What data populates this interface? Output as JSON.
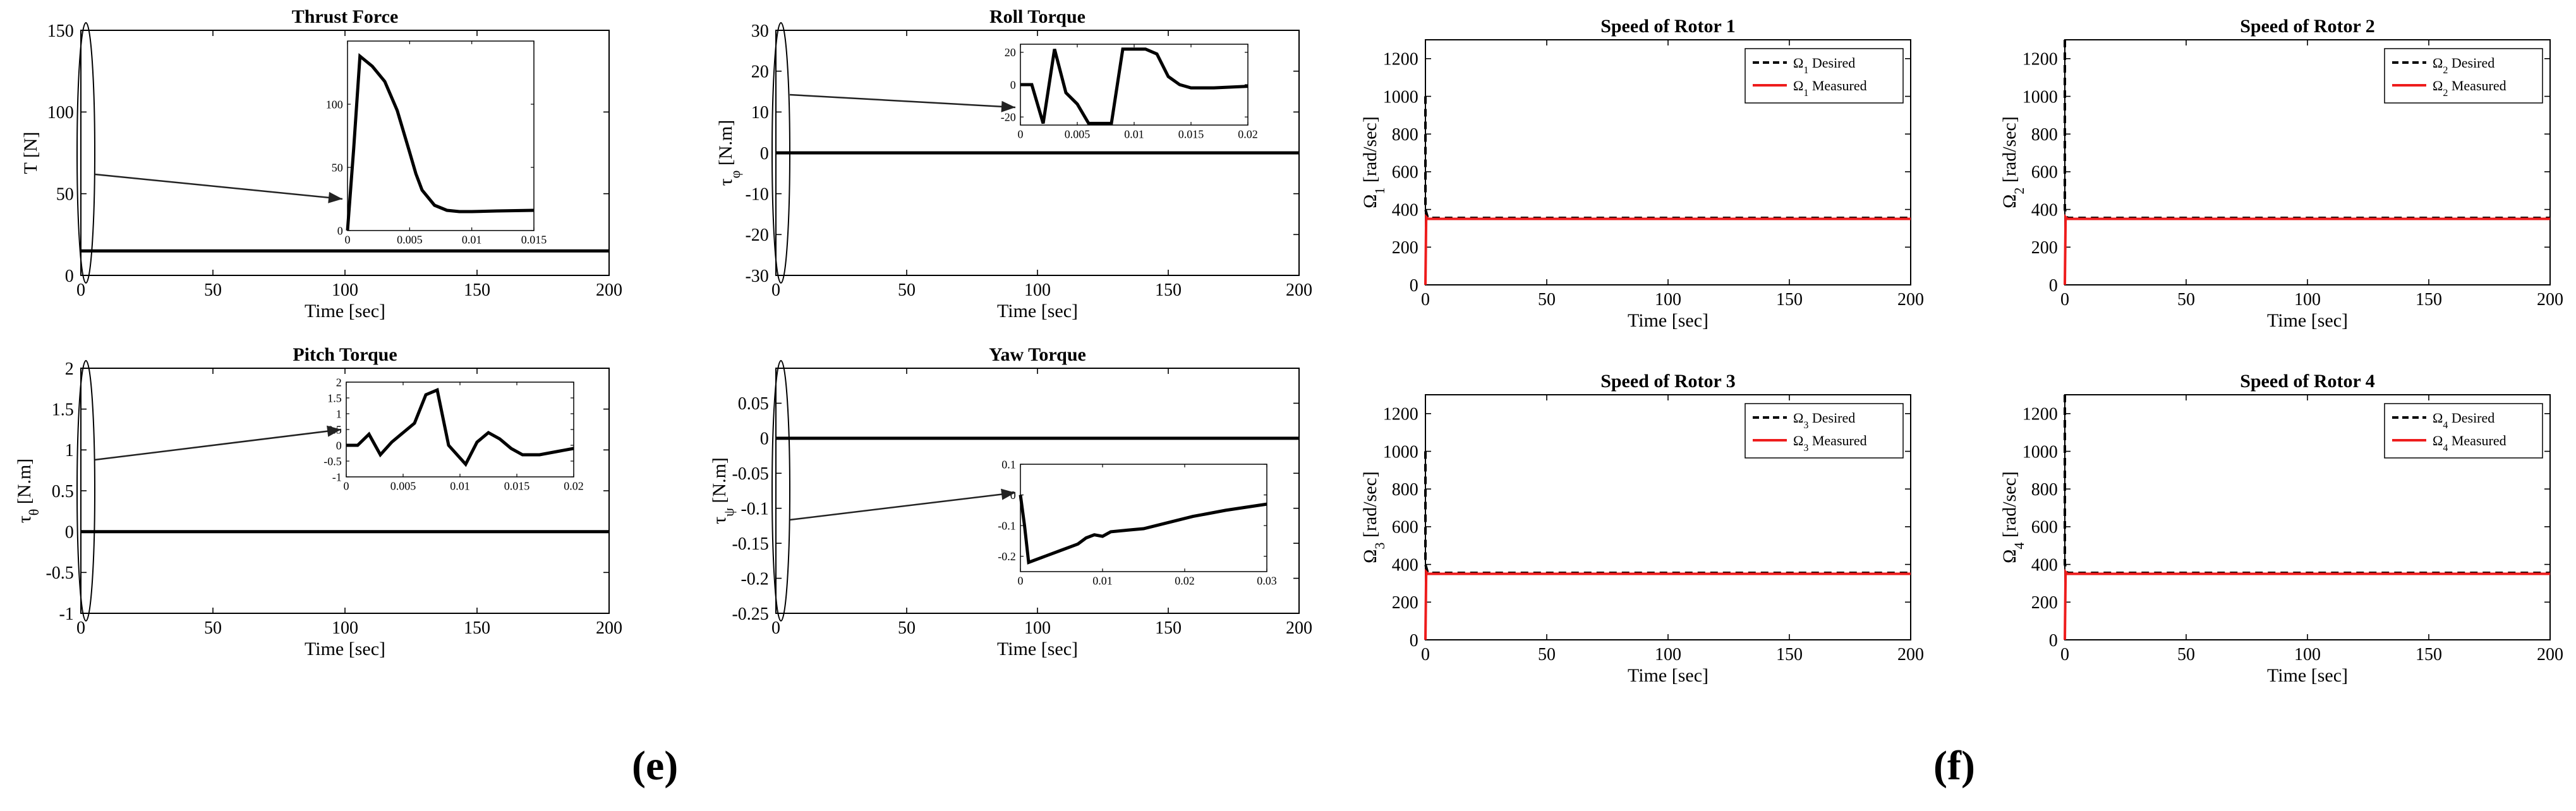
{
  "labels": {
    "left_group": "(e)",
    "right_group": "(f)"
  },
  "colors": {
    "axis": "#000000",
    "measured": "#ee1c1c",
    "desired": "#000000"
  },
  "chart_data": [
    {
      "id": "thrust",
      "type": "line",
      "title": "Thrust Force",
      "xlabel": "Time [sec]",
      "ylabel": "T [N]",
      "xlim": [
        0,
        200
      ],
      "ylim": [
        0,
        150
      ],
      "xticks": [
        0,
        50,
        100,
        150,
        200
      ],
      "yticks": [
        0,
        50,
        100,
        150
      ],
      "series": [
        {
          "name": "T",
          "x": [
            0,
            200
          ],
          "y": [
            15,
            15
          ]
        }
      ],
      "inset": {
        "xlim": [
          0,
          0.015
        ],
        "ylim": [
          0,
          150
        ],
        "xticks": [
          0,
          0.005,
          0.01,
          0.015
        ],
        "yticks": [
          0,
          50,
          100
        ],
        "xtick_labels": [
          "0",
          "0.005",
          "0.01",
          "0.015"
        ],
        "ytick_labels": [
          "0",
          "50",
          "100"
        ],
        "x": [
          0,
          0.0005,
          0.001,
          0.002,
          0.003,
          0.004,
          0.005,
          0.0055,
          0.006,
          0.007,
          0.008,
          0.009,
          0.01,
          0.012,
          0.015
        ],
        "y": [
          0,
          65,
          138,
          130,
          118,
          95,
          62,
          45,
          32,
          20,
          16,
          15,
          15,
          15.5,
          16
        ]
      }
    },
    {
      "id": "roll",
      "type": "line",
      "title": "Roll Torque",
      "xlabel": "Time [sec]",
      "ylabel": "τφ [N.m]",
      "xlim": [
        0,
        200
      ],
      "ylim": [
        -30,
        30
      ],
      "xticks": [
        0,
        50,
        100,
        150,
        200
      ],
      "yticks": [
        -30,
        -20,
        -10,
        0,
        10,
        20,
        30
      ],
      "series": [
        {
          "name": "τφ",
          "x": [
            0,
            200
          ],
          "y": [
            0,
            0
          ]
        }
      ],
      "inset": {
        "xlim": [
          0,
          0.02
        ],
        "ylim": [
          -25,
          25
        ],
        "xticks": [
          0,
          0.005,
          0.01,
          0.015,
          0.02
        ],
        "yticks": [
          -20,
          0,
          20
        ],
        "xtick_labels": [
          "0",
          "0.005",
          "0.01",
          "0.015",
          "0.02"
        ],
        "ytick_labels": [
          "-20",
          "0",
          "20"
        ],
        "x": [
          0,
          0.001,
          0.002,
          0.003,
          0.004,
          0.005,
          0.006,
          0.008,
          0.009,
          0.011,
          0.012,
          0.013,
          0.014,
          0.015,
          0.017,
          0.02
        ],
        "y": [
          0,
          0,
          -24,
          22,
          -5,
          -12,
          -24,
          -24,
          22,
          22,
          19,
          5,
          0,
          -2,
          -2,
          -1
        ]
      }
    },
    {
      "id": "pitch",
      "type": "line",
      "title": "Pitch Torque",
      "xlabel": "Time [sec]",
      "ylabel": "τθ [N.m]",
      "xlim": [
        0,
        200
      ],
      "ylim": [
        -1,
        2
      ],
      "xticks": [
        0,
        50,
        100,
        150,
        200
      ],
      "yticks": [
        -1,
        -0.5,
        0,
        0.5,
        1,
        1.5,
        2
      ],
      "series": [
        {
          "name": "τθ",
          "x": [
            0,
            200
          ],
          "y": [
            0,
            0
          ]
        }
      ],
      "inset": {
        "xlim": [
          0,
          0.02
        ],
        "ylim": [
          -1,
          2
        ],
        "xticks": [
          0,
          0.005,
          0.01,
          0.015,
          0.02
        ],
        "yticks": [
          -1,
          -0.5,
          0,
          0.5,
          1,
          1.5,
          2
        ],
        "xtick_labels": [
          "0",
          "0.005",
          "0.01",
          "0.015",
          "0.02"
        ],
        "ytick_labels": [
          "-1",
          "-0.5",
          "0",
          "0.5",
          "1",
          "1.5",
          "2"
        ],
        "x": [
          0,
          0.001,
          0.002,
          0.003,
          0.004,
          0.005,
          0.006,
          0.007,
          0.008,
          0.009,
          0.0105,
          0.0115,
          0.0125,
          0.0135,
          0.0145,
          0.0155,
          0.017,
          0.02
        ],
        "y": [
          0,
          0,
          0.35,
          -0.3,
          0.1,
          0.4,
          0.7,
          1.6,
          1.75,
          0,
          -0.6,
          0.1,
          0.4,
          0.2,
          -0.1,
          -0.3,
          -0.3,
          -0.1
        ]
      }
    },
    {
      "id": "yaw",
      "type": "line",
      "title": "Yaw Torque",
      "xlabel": "Time [sec]",
      "ylabel": "τψ [N.m]",
      "xlim": [
        0,
        200
      ],
      "ylim": [
        -0.25,
        0.1
      ],
      "xticks": [
        0,
        50,
        100,
        150,
        200
      ],
      "yticks": [
        -0.25,
        -0.2,
        -0.15,
        -0.1,
        -0.05,
        0,
        0.05
      ],
      "ytick_labels": [
        "-0.25",
        "-0.2",
        "-0.15",
        "-0.1",
        "-0.05",
        "0",
        "0.05"
      ],
      "series": [
        {
          "name": "τψ",
          "x": [
            0,
            200
          ],
          "y": [
            0,
            0
          ]
        }
      ],
      "inset": {
        "xlim": [
          0,
          0.03
        ],
        "ylim": [
          -0.25,
          0.1
        ],
        "xticks": [
          0,
          0.01,
          0.02,
          0.03
        ],
        "yticks": [
          -0.2,
          -0.1,
          0,
          0.1
        ],
        "xtick_labels": [
          "0",
          "0.01",
          "0.02",
          "0.03"
        ],
        "ytick_labels": [
          "-0.2",
          "-0.1",
          "0",
          "0.1"
        ],
        "x": [
          0,
          0.0005,
          0.001,
          0.003,
          0.005,
          0.007,
          0.008,
          0.009,
          0.01,
          0.011,
          0.013,
          0.015,
          0.018,
          0.021,
          0.025,
          0.03
        ],
        "y": [
          0,
          -0.1,
          -0.22,
          -0.2,
          -0.18,
          -0.16,
          -0.14,
          -0.13,
          -0.135,
          -0.12,
          -0.115,
          -0.11,
          -0.09,
          -0.07,
          -0.05,
          -0.03
        ]
      }
    },
    {
      "id": "rotor1",
      "type": "line",
      "title": "Speed of Rotor 1",
      "xlabel": "Time [sec]",
      "ylabel": "Ω1  [rad/sec]",
      "xlim": [
        0,
        200
      ],
      "ylim": [
        0,
        1300
      ],
      "xticks": [
        0,
        50,
        100,
        150,
        200
      ],
      "yticks": [
        0,
        200,
        400,
        600,
        800,
        1000,
        1200
      ],
      "legend": "top-right",
      "series": [
        {
          "name": "Ω1 Desired",
          "style": "dashed",
          "x": [
            0,
            0,
            1,
            200
          ],
          "y": [
            1000,
            400,
            355,
            355
          ]
        },
        {
          "name": "Ω1 Measured",
          "style": "solid",
          "x": [
            0,
            0.3,
            1,
            200
          ],
          "y": [
            0,
            360,
            350,
            350
          ]
        }
      ]
    },
    {
      "id": "rotor2",
      "type": "line",
      "title": "Speed of Rotor 2",
      "xlabel": "Time [sec]",
      "ylabel": "Ω2  [rad/sec]",
      "xlim": [
        0,
        200
      ],
      "ylim": [
        0,
        1300
      ],
      "xticks": [
        0,
        50,
        100,
        150,
        200
      ],
      "yticks": [
        0,
        200,
        400,
        600,
        800,
        1000,
        1200
      ],
      "legend": "top-right",
      "series": [
        {
          "name": "Ω2 Desired",
          "style": "dashed",
          "x": [
            0,
            0,
            1,
            200
          ],
          "y": [
            1300,
            400,
            355,
            355
          ]
        },
        {
          "name": "Ω2 Measured",
          "style": "solid",
          "x": [
            0,
            0.3,
            1,
            200
          ],
          "y": [
            0,
            360,
            350,
            350
          ]
        }
      ]
    },
    {
      "id": "rotor3",
      "type": "line",
      "title": "Speed of Rotor 3",
      "xlabel": "Time [sec]",
      "ylabel": "Ω3  [rad/sec]",
      "xlim": [
        0,
        200
      ],
      "ylim": [
        0,
        1300
      ],
      "xticks": [
        0,
        50,
        100,
        150,
        200
      ],
      "yticks": [
        0,
        200,
        400,
        600,
        800,
        1000,
        1200
      ],
      "legend": "top-right",
      "series": [
        {
          "name": "Ω3 Desired",
          "style": "dashed",
          "x": [
            0,
            0,
            1,
            200
          ],
          "y": [
            1000,
            400,
            355,
            355
          ]
        },
        {
          "name": "Ω3 Measured",
          "style": "solid",
          "x": [
            0,
            0.3,
            1,
            200
          ],
          "y": [
            0,
            360,
            350,
            350
          ]
        }
      ]
    },
    {
      "id": "rotor4",
      "type": "line",
      "title": "Speed of Rotor 4",
      "xlabel": "Time [sec]",
      "ylabel": "Ω4  [rad/sec]",
      "xlim": [
        0,
        200
      ],
      "ylim": [
        0,
        1300
      ],
      "xticks": [
        0,
        50,
        100,
        150,
        200
      ],
      "yticks": [
        0,
        200,
        400,
        600,
        800,
        1000,
        1200
      ],
      "legend": "top-right",
      "series": [
        {
          "name": "Ω4 Desired",
          "style": "dashed",
          "x": [
            0,
            0,
            1,
            200
          ],
          "y": [
            1300,
            400,
            355,
            355
          ]
        },
        {
          "name": "Ω4 Measured",
          "style": "solid",
          "x": [
            0,
            0.3,
            1,
            200
          ],
          "y": [
            0,
            360,
            350,
            350
          ]
        }
      ]
    }
  ]
}
